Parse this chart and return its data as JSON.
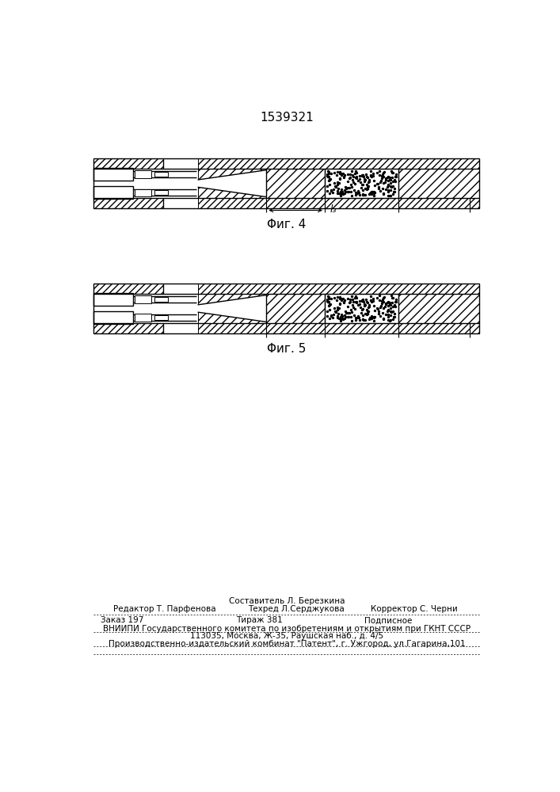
{
  "title": "1539321",
  "fig4_label": "Φиг. 4",
  "fig5_label": "Φиг. 5",
  "l3_label": "l₃",
  "footer_sestavitel": "Составитель Л. Березкина",
  "footer_redaktor": "Редактор Т. Парфенова",
  "footer_tehred": "Техред Л.Серджукова",
  "footer_korrektor": "Корректор С. Черни",
  "footer_zakaz": "Заказ 197",
  "footer_tirazh": "Тираж 381",
  "footer_podpisnoe": "Подписное",
  "footer_vniip": "ВНИИПИ Государственного комитета по изобретениям и открытиям при ГКНТ СССР",
  "footer_address": "113035, Москва, Ж-35, Раушская наб., д. 4/5",
  "footer_patent": "Производственно-издательский комбинат \"Патент\", г. Ужгород, ул.Гагарина,101"
}
